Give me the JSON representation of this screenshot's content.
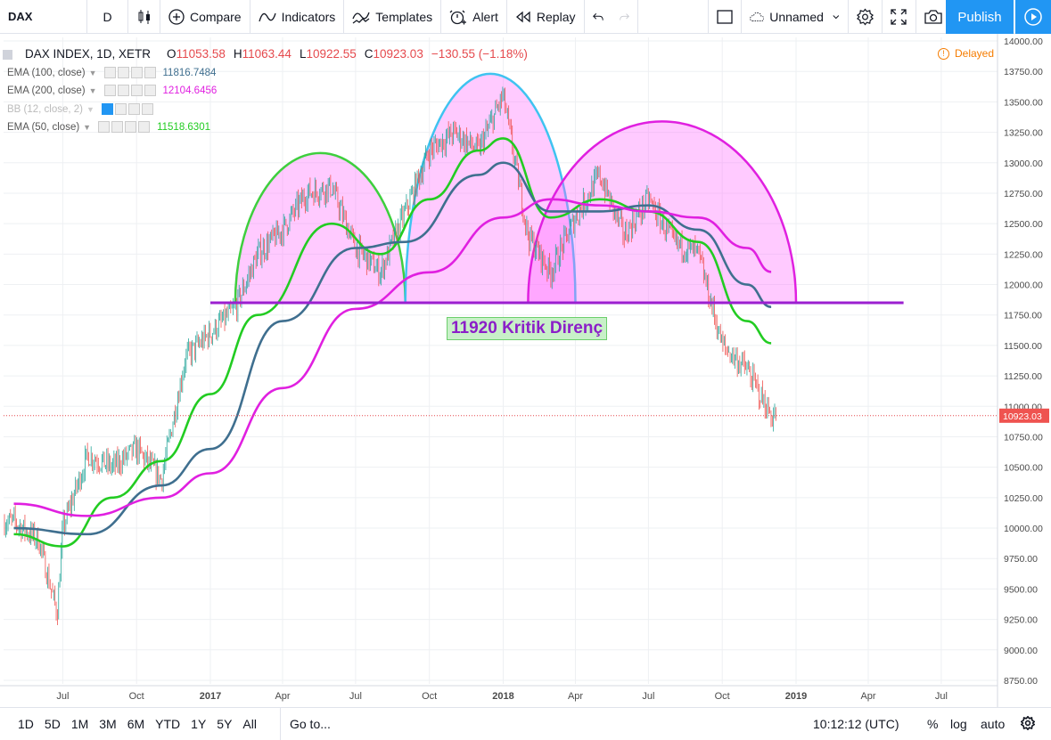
{
  "toolbar": {
    "symbol": "DAX",
    "interval": "D",
    "compare": "Compare",
    "indicators": "Indicators",
    "templates": "Templates",
    "alert": "Alert",
    "replay": "Replay",
    "layout_name": "Unnamed",
    "publish": "Publish",
    "icons": [
      "candles-icon",
      "plus-circle-icon",
      "indicators-icon",
      "templates-icon",
      "alert-icon",
      "replay-icon",
      "undo-icon",
      "redo-icon",
      "rectangle-icon",
      "cloud-icon",
      "chevron-down-icon",
      "gear-icon",
      "fullscreen-icon",
      "camera-icon",
      "play-icon"
    ]
  },
  "legend": {
    "title": "DAX INDEX, 1D, XETR",
    "o_label": "O",
    "o": "11053.58",
    "h_label": "H",
    "h": "11063.44",
    "l_label": "L",
    "l": "10922.55",
    "c_label": "C",
    "c": "10923.03",
    "change": "−130.55 (−1.18%)",
    "delayed": "Delayed",
    "indicators": [
      {
        "label": "EMA (100, close)",
        "value": "11816.7484",
        "color": "#3f6f8f"
      },
      {
        "label": "EMA (200, close)",
        "value": "12104.6456",
        "color": "#e020e0"
      },
      {
        "label": "BB (12, close, 2)",
        "value": "",
        "color": "#bbbbbb"
      },
      {
        "label": "EMA (50, close)",
        "value": "11518.6301",
        "color": "#22cc22"
      }
    ]
  },
  "annotation": {
    "text": "11920 Kritik Direnç",
    "level": 11850
  },
  "chart_data": {
    "type": "candlestick",
    "price_axis_labels": [
      "14000.00",
      "13750.00",
      "13500.00",
      "13250.00",
      "13000.00",
      "12750.00",
      "12500.00",
      "12250.00",
      "12000.00",
      "11750.00",
      "11500.00",
      "11250.00",
      "11000.00",
      "10750.00",
      "10500.00",
      "10250.00",
      "10000.00",
      "9750.00",
      "9500.00",
      "9250.00",
      "9000.00",
      "8750.00"
    ],
    "price_ticks": [
      14000,
      13750,
      13500,
      13250,
      13000,
      12750,
      12500,
      12250,
      12000,
      11750,
      11500,
      11250,
      11000,
      10750,
      10500,
      10250,
      10000,
      9750,
      9500,
      9250,
      9000,
      8750
    ],
    "ylim": [
      8750,
      14000
    ],
    "last_price": 10923.03,
    "last_price_label": "10923.03",
    "time_axis_labels": [
      "Jul",
      "Oct",
      "2017",
      "Apr",
      "Jul",
      "Oct",
      "2018",
      "Apr",
      "Jul",
      "Oct",
      "2019",
      "Apr",
      "Jul"
    ],
    "time_axis_bold": [
      false,
      false,
      true,
      false,
      false,
      false,
      true,
      false,
      false,
      false,
      true,
      false,
      false
    ],
    "time_axis_dates": [
      "2016-07",
      "2016-10",
      "2017-01",
      "2017-04",
      "2017-07",
      "2017-10",
      "2018-01",
      "2018-04",
      "2018-07",
      "2018-10",
      "2019-01",
      "2019-04",
      "2019-07"
    ],
    "price_path": [
      [
        "2016-05",
        10050
      ],
      [
        "2016-06",
        9900
      ],
      [
        "2016-06-24",
        9300
      ],
      [
        "2016-07",
        10000
      ],
      [
        "2016-08",
        10600
      ],
      [
        "2016-09",
        10500
      ],
      [
        "2016-10",
        10650
      ],
      [
        "2016-11",
        10400
      ],
      [
        "2016-12",
        11400
      ],
      [
        "2017-01",
        11600
      ],
      [
        "2017-02",
        11800
      ],
      [
        "2017-03",
        12250
      ],
      [
        "2017-04",
        12450
      ],
      [
        "2017-05",
        12750
      ],
      [
        "2017-06",
        12800
      ],
      [
        "2017-07",
        12300
      ],
      [
        "2017-08",
        12100
      ],
      [
        "2017-09",
        12600
      ],
      [
        "2017-10",
        13100
      ],
      [
        "2017-11",
        13250
      ],
      [
        "2017-12",
        13100
      ],
      [
        "2018-01",
        13550
      ],
      [
        "2018-02",
        12400
      ],
      [
        "2018-03",
        12100
      ],
      [
        "2018-04",
        12550
      ],
      [
        "2018-05",
        12900
      ],
      [
        "2018-06",
        12400
      ],
      [
        "2018-07",
        12700
      ],
      [
        "2018-08",
        12350
      ],
      [
        "2018-09",
        12250
      ],
      [
        "2018-10",
        11500
      ],
      [
        "2018-11",
        11300
      ],
      [
        "2018-12",
        10920
      ]
    ],
    "series": [
      {
        "name": "EMA (50, close)",
        "color": "#22cc22",
        "values": [
          [
            "2016-05",
            9950
          ],
          [
            "2016-07",
            9850
          ],
          [
            "2016-09",
            10250
          ],
          [
            "2016-11",
            10550
          ],
          [
            "2017-01",
            11100
          ],
          [
            "2017-03",
            11750
          ],
          [
            "2017-06",
            12500
          ],
          [
            "2017-08",
            12250
          ],
          [
            "2017-10",
            12700
          ],
          [
            "2017-12",
            13100
          ],
          [
            "2018-01",
            13200
          ],
          [
            "2018-03",
            12550
          ],
          [
            "2018-05",
            12700
          ],
          [
            "2018-07",
            12600
          ],
          [
            "2018-09",
            12350
          ],
          [
            "2018-11",
            11700
          ],
          [
            "2018-12",
            11518
          ]
        ]
      },
      {
        "name": "EMA (100, close)",
        "color": "#3f6f8f",
        "values": [
          [
            "2016-05",
            10000
          ],
          [
            "2016-08",
            9950
          ],
          [
            "2016-11",
            10350
          ],
          [
            "2017-01",
            10650
          ],
          [
            "2017-04",
            11700
          ],
          [
            "2017-07",
            12300
          ],
          [
            "2017-09",
            12350
          ],
          [
            "2017-12",
            12900
          ],
          [
            "2018-01",
            13000
          ],
          [
            "2018-03",
            12600
          ],
          [
            "2018-05",
            12600
          ],
          [
            "2018-07",
            12650
          ],
          [
            "2018-09",
            12450
          ],
          [
            "2018-11",
            12000
          ],
          [
            "2018-12",
            11816
          ]
        ]
      },
      {
        "name": "EMA (200, close)",
        "color": "#e020e0",
        "values": [
          [
            "2016-05",
            10200
          ],
          [
            "2016-08",
            10100
          ],
          [
            "2016-11",
            10250
          ],
          [
            "2017-01",
            10450
          ],
          [
            "2017-04",
            11150
          ],
          [
            "2017-07",
            11800
          ],
          [
            "2017-10",
            12100
          ],
          [
            "2018-01",
            12550
          ],
          [
            "2018-03",
            12700
          ],
          [
            "2018-05",
            12650
          ],
          [
            "2018-07",
            12600
          ],
          [
            "2018-09",
            12550
          ],
          [
            "2018-11",
            12300
          ],
          [
            "2018-12",
            12104
          ]
        ]
      }
    ],
    "arcs": [
      {
        "from": "2017-02",
        "to": "2017-09",
        "top_value": 13080,
        "base_value": 11850,
        "stroke": "#3ecf3e"
      },
      {
        "from": "2017-09",
        "to": "2018-04",
        "top_value": 13730,
        "base_value": 11850,
        "stroke": "#3fc3f0"
      },
      {
        "from": "2018-02",
        "to": "2019-01",
        "top_value": 13340,
        "base_value": 11850,
        "stroke": "#e020e0"
      }
    ]
  },
  "bottombar": {
    "timeframes": [
      "1D",
      "5D",
      "1M",
      "3M",
      "6M",
      "YTD",
      "1Y",
      "5Y",
      "All"
    ],
    "goto": "Go to...",
    "clock": "10:12:12 (UTC)",
    "percent": "%",
    "log": "log",
    "auto": "auto"
  }
}
